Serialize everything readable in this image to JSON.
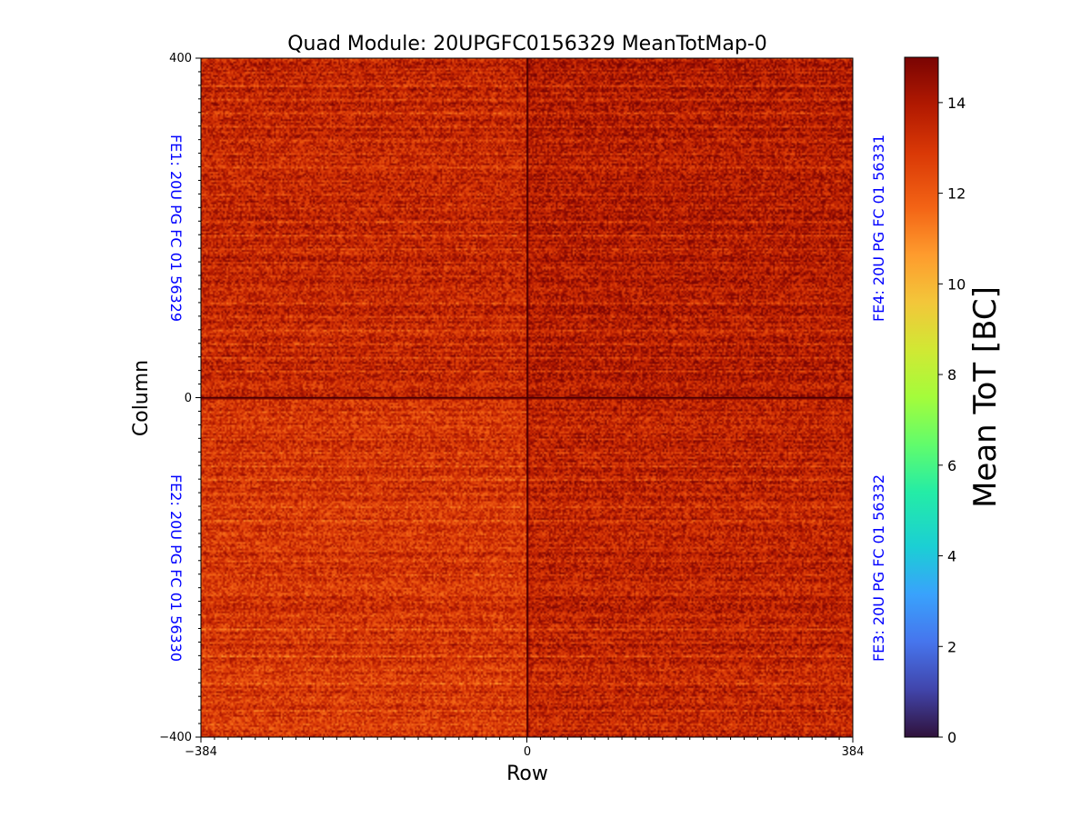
{
  "chart_data": {
    "type": "heatmap",
    "title": "Quad Module: 20UPGFC0156329 MeanTotMap-0",
    "xlabel": "Row",
    "ylabel": "Column",
    "xlim": [
      -384,
      384
    ],
    "ylim": [
      -400,
      400
    ],
    "x_ticks": [
      "−384",
      "0",
      "384"
    ],
    "y_ticks": [
      "400",
      "0",
      "−400"
    ],
    "colorbar": {
      "label": "Mean ToT [BC]",
      "range": [
        0,
        15
      ],
      "colormap": "turbo",
      "ticks": [
        "0",
        "2",
        "4",
        "6",
        "8",
        "10",
        "12",
        "14"
      ]
    },
    "quadrants": [
      {
        "name": "FE1: 20U PG FC 01 56329",
        "position": "top-left",
        "mean_tot": 13.5
      },
      {
        "name": "FE4: 20U PG FC 01 56331",
        "position": "top-right",
        "mean_tot": 13.9
      },
      {
        "name": "FE2: 20U PG FC 01 56330",
        "position": "bottom-left",
        "mean_tot": 13.0
      },
      {
        "name": "FE3: 20U PG FC 01 56332",
        "position": "bottom-right",
        "mean_tot": 13.6
      }
    ]
  }
}
